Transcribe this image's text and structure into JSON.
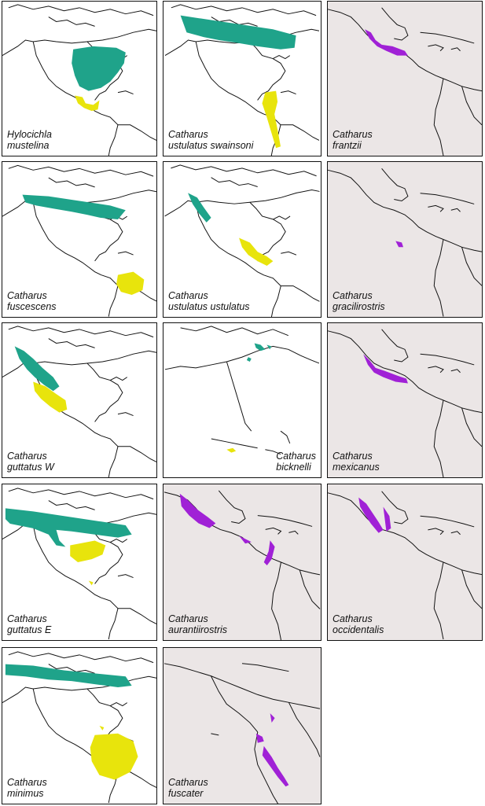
{
  "colors": {
    "breeding": "#1fa38a",
    "wintering": "#e8e40c",
    "resident": "#a021d6",
    "land_outline": "#111111",
    "grey_background": "#ebe6e6"
  },
  "panels": [
    {
      "genus": "Hylocichla",
      "species": "mustelina",
      "background": "white",
      "ranges": [
        "breeding",
        "wintering"
      ]
    },
    {
      "genus": "Catharus",
      "species": "ustulatus swainsoni",
      "background": "white",
      "ranges": [
        "breeding",
        "wintering"
      ]
    },
    {
      "genus": "Catharus",
      "species": "frantzii",
      "background": "grey",
      "ranges": [
        "resident"
      ]
    },
    {
      "genus": "Catharus",
      "species": "fuscescens",
      "background": "white",
      "ranges": [
        "breeding",
        "wintering"
      ]
    },
    {
      "genus": "Catharus",
      "species": "ustulatus ustulatus",
      "background": "white",
      "ranges": [
        "breeding",
        "wintering"
      ]
    },
    {
      "genus": "Catharus",
      "species": "gracilirostris",
      "background": "grey",
      "ranges": [
        "resident"
      ]
    },
    {
      "genus": "Catharus",
      "species": "guttatus W",
      "background": "white",
      "ranges": [
        "breeding",
        "wintering"
      ]
    },
    {
      "genus": "Catharus",
      "species": "bicknelli",
      "background": "white",
      "ranges": [
        "breeding",
        "wintering"
      ]
    },
    {
      "genus": "Catharus",
      "species": "mexicanus",
      "background": "grey",
      "ranges": [
        "resident"
      ]
    },
    {
      "genus": "Catharus",
      "species": "guttatus E",
      "background": "white",
      "ranges": [
        "breeding",
        "wintering"
      ]
    },
    {
      "genus": "Catharus",
      "species": "aurantiirostris",
      "background": "grey",
      "ranges": [
        "resident"
      ]
    },
    {
      "genus": "Catharus",
      "species": "occidentalis",
      "background": "grey",
      "ranges": [
        "resident"
      ]
    },
    {
      "genus": "Catharus",
      "species": "minimus",
      "background": "white",
      "ranges": [
        "breeding",
        "wintering"
      ]
    },
    {
      "genus": "Catharus",
      "species": "fuscater",
      "background": "grey",
      "ranges": [
        "resident"
      ]
    }
  ]
}
